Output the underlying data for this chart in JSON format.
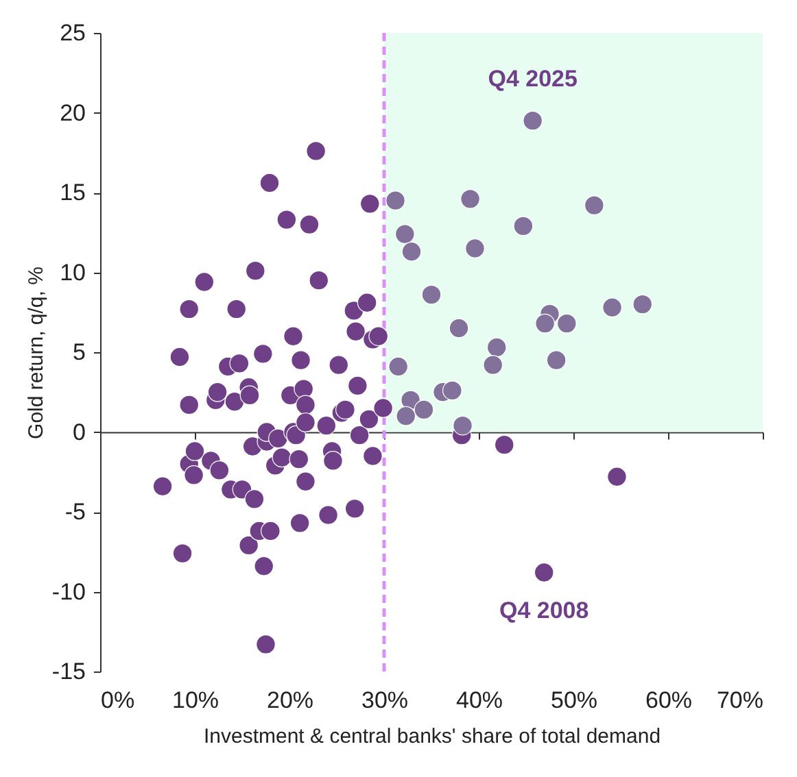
{
  "chart_data": {
    "type": "scatter",
    "xlabel": "Investment & central banks' share of total demand",
    "ylabel": "Gold return, q/q, %",
    "x": [
      6.6,
      8.4,
      8.7,
      9.4,
      9.4,
      9.4,
      10.0,
      9.9,
      11.0,
      11.7,
      12.2,
      12.4,
      12.6,
      13.5,
      13.8,
      14.2,
      14.4,
      14.7,
      15.0,
      15.7,
      15.8,
      15.7,
      16.1,
      16.3,
      16.4,
      16.8,
      17.2,
      17.3,
      17.5,
      17.6,
      17.6,
      17.9,
      18.0,
      18.5,
      18.8,
      19.2,
      19.7,
      20.1,
      20.4,
      20.4,
      20.7,
      21.0,
      21.1,
      21.2,
      21.5,
      21.7,
      21.7,
      21.7,
      22.1,
      22.8,
      23.1,
      23.9,
      24.1,
      24.5,
      24.6,
      25.2,
      25.5,
      25.9,
      26.8,
      26.9,
      27.0,
      27.2,
      27.4,
      28.2,
      28.4,
      28.5,
      28.8,
      28.8,
      29.4,
      29.9,
      38.2,
      42.7,
      54.6,
      46.9,
      45.7,
      31.2,
      39.1,
      52.2,
      32.2,
      44.7,
      32.9,
      39.6,
      35.0,
      54.1,
      57.3,
      47.5,
      47.0,
      49.3,
      37.9,
      41.9,
      41.5,
      48.2,
      31.5,
      36.2,
      37.2,
      32.8,
      34.2,
      32.3,
      38.3
    ],
    "values": [
      -3.4,
      4.7,
      -7.6,
      7.7,
      1.7,
      -2.0,
      -1.2,
      -2.7,
      9.4,
      -1.8,
      2.0,
      2.5,
      -2.4,
      4.1,
      -3.6,
      1.9,
      7.7,
      4.3,
      -3.6,
      2.8,
      2.3,
      -7.1,
      -0.9,
      -4.2,
      10.1,
      -6.2,
      4.9,
      -8.4,
      -13.3,
      -0.6,
      0.0,
      15.6,
      -6.2,
      -2.1,
      -0.4,
      -1.6,
      13.3,
      2.3,
      6.0,
      0.0,
      -0.2,
      -1.7,
      -5.7,
      4.5,
      2.7,
      1.7,
      0.6,
      -3.1,
      13.0,
      17.6,
      9.5,
      0.4,
      -5.2,
      -1.2,
      -1.8,
      4.2,
      1.2,
      1.4,
      7.6,
      -4.8,
      6.3,
      2.9,
      -0.2,
      8.1,
      0.8,
      14.3,
      -1.5,
      5.8,
      6.0,
      1.5,
      -0.2,
      -0.8,
      -2.8,
      -8.8,
      19.5,
      14.5,
      14.6,
      14.2,
      12.4,
      12.9,
      11.3,
      11.5,
      8.6,
      7.8,
      8.0,
      7.4,
      6.8,
      6.8,
      6.5,
      5.3,
      4.2,
      4.5,
      4.1,
      2.5,
      2.6,
      2.0,
      1.4,
      1.0,
      0.4
    ],
    "colors": [
      "#6f4088",
      "#6f4088",
      "#6f4088",
      "#6f4088",
      "#6f4088",
      "#6f4088",
      "#6f4088",
      "#6f4088",
      "#6f4088",
      "#6f4088",
      "#6f4088",
      "#6f4088",
      "#6f4088",
      "#6f4088",
      "#6f4088",
      "#6f4088",
      "#6f4088",
      "#6f4088",
      "#6f4088",
      "#6f4088",
      "#6f4088",
      "#6f4088",
      "#6f4088",
      "#6f4088",
      "#6f4088",
      "#6f4088",
      "#6f4088",
      "#6f4088",
      "#6f4088",
      "#6f4088",
      "#6f4088",
      "#6f4088",
      "#6f4088",
      "#6f4088",
      "#6f4088",
      "#6f4088",
      "#6f4088",
      "#6f4088",
      "#6f4088",
      "#6f4088",
      "#6f4088",
      "#6f4088",
      "#6f4088",
      "#6f4088",
      "#6f4088",
      "#6f4088",
      "#6f4088",
      "#6f4088",
      "#6f4088",
      "#6f4088",
      "#6f4088",
      "#6f4088",
      "#6f4088",
      "#6f4088",
      "#6f4088",
      "#6f4088",
      "#6f4088",
      "#6f4088",
      "#6f4088",
      "#6f4088",
      "#6f4088",
      "#6f4088",
      "#6f4088",
      "#6f4088",
      "#6f4088",
      "#6f4088",
      "#6f4088",
      "#6f4088",
      "#6f4088",
      "#6f4088",
      "#6f4088",
      "#6f4088",
      "#6f4088",
      "#6f4088",
      "#82719b",
      "#82719b",
      "#82719b",
      "#82719b",
      "#82719b",
      "#82719b",
      "#82719b",
      "#82719b",
      "#82719b",
      "#82719b",
      "#82719b",
      "#82719b",
      "#82719b",
      "#82719b",
      "#82719b",
      "#82719b",
      "#82719b",
      "#82719b",
      "#82719b",
      "#82719b",
      "#82719b",
      "#82719b",
      "#82719b",
      "#82719b",
      "#82719b"
    ],
    "marker": "circle",
    "grid": false,
    "xlim": [
      0,
      70
    ],
    "xticks": [
      {
        "value": 0,
        "label": "0%"
      },
      {
        "value": 10,
        "label": "10%"
      },
      {
        "value": 20,
        "label": "20%"
      },
      {
        "value": 30,
        "label": "30%"
      },
      {
        "value": 40,
        "label": "40%"
      },
      {
        "value": 50,
        "label": "50%"
      },
      {
        "value": 60,
        "label": "60%"
      },
      {
        "value": 70,
        "label": "70%"
      }
    ],
    "ylim": [
      -15,
      25
    ],
    "yticks": [
      -15,
      -10,
      -5,
      0,
      5,
      10,
      15,
      20,
      25
    ],
    "ref_lines": [
      {
        "axis": "x",
        "value": 30,
        "color": "#d98ff5",
        "line_style": "dashed"
      }
    ],
    "bands": [
      {
        "axis": "x",
        "from": 30,
        "to": 70,
        "color": "#e8fdf1"
      }
    ],
    "annotations": [
      {
        "text": "Q4 2025",
        "x": 45.7,
        "y": 19.5
      },
      {
        "text": "Q4 2008",
        "x": 46.9,
        "y": -8.8
      }
    ]
  }
}
